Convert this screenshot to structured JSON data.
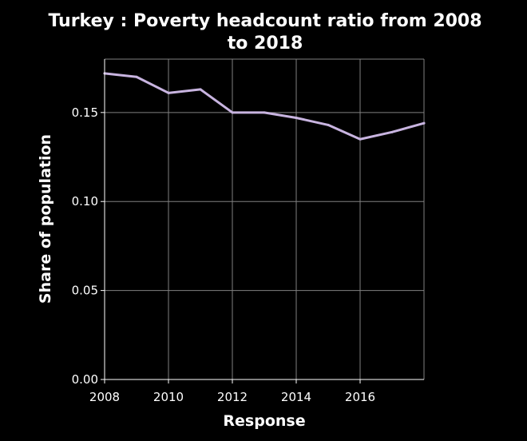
{
  "chart_data": {
    "type": "line",
    "title_lines": [
      "Turkey : Poverty headcount ratio from 2008",
      "to 2018"
    ],
    "xlabel": "Response",
    "ylabel": "Share of population",
    "xlim": [
      2008,
      2018
    ],
    "ylim": [
      0,
      0.18
    ],
    "x_ticks": [
      2008,
      2010,
      2012,
      2014,
      2016
    ],
    "y_ticks": [
      0.0,
      0.05,
      0.1,
      0.15
    ],
    "y_tick_labels": [
      "0.00",
      "0.05",
      "0.10",
      "0.15"
    ],
    "grid": true,
    "series": [
      {
        "x": [
          2008,
          2009,
          2010,
          2011,
          2012,
          2013,
          2014,
          2015,
          2016,
          2017,
          2018
        ],
        "values": [
          0.172,
          0.17,
          0.161,
          0.163,
          0.15,
          0.15,
          0.147,
          0.143,
          0.135,
          0.139,
          0.144
        ],
        "color": "#c8b4e0"
      }
    ],
    "colors": {
      "background": "#000000",
      "plot_background": "#000000",
      "grid": "#808080",
      "axes": "#ffffff",
      "text": "#ffffff"
    }
  }
}
